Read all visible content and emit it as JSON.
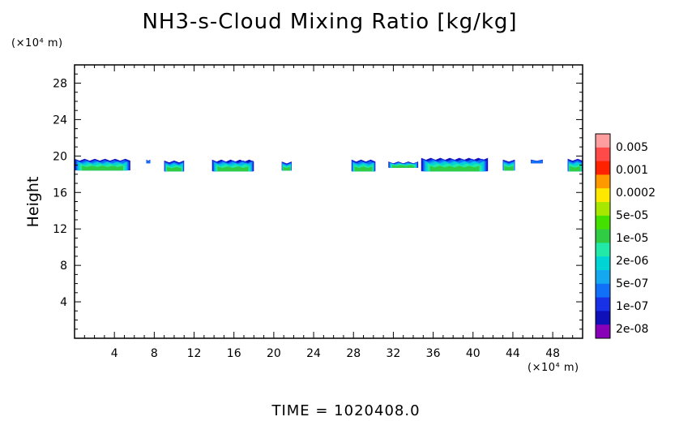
{
  "chart_data": {
    "type": "heatmap",
    "title": "NH3-s-Cloud Mixing Ratio [kg/kg]",
    "ylabel": "Height",
    "x_unit": "(×10⁴ m)",
    "y_unit": "(×10⁴ m)",
    "xlim": [
      0,
      51
    ],
    "ylim": [
      0,
      30
    ],
    "x_ticks": [
      4,
      8,
      12,
      16,
      20,
      24,
      28,
      32,
      36,
      40,
      44,
      48
    ],
    "y_ticks": [
      4,
      8,
      12,
      16,
      20,
      24,
      28
    ],
    "colorbar": {
      "labels": [
        "0.005",
        "0.001",
        "0.0002",
        "5e-05",
        "1e-05",
        "2e-06",
        "5e-07",
        "1e-07",
        "2e-08"
      ],
      "colors": [
        "#ff9e9e",
        "#ff4a4a",
        "#ff2200",
        "#ff9900",
        "#ffe800",
        "#a8e800",
        "#44e000",
        "#2fcc44",
        "#22e8a8",
        "#00d4d4",
        "#13a8f0",
        "#1070f8",
        "#1830e6",
        "#1010b8",
        "#8800b8"
      ]
    },
    "cloud_regions": [
      {
        "x": [
          0,
          5.6
        ],
        "y_base": 18.4,
        "y_top": 19.7
      },
      {
        "x": [
          7.2,
          7.6
        ],
        "y_base": 19.2,
        "y_top": 19.6
      },
      {
        "x": [
          9.0,
          11.0
        ],
        "y_base": 18.3,
        "y_top": 19.5
      },
      {
        "x": [
          13.8,
          18.0
        ],
        "y_base": 18.3,
        "y_top": 19.6
      },
      {
        "x": [
          20.8,
          21.8
        ],
        "y_base": 18.4,
        "y_top": 19.4
      },
      {
        "x": [
          27.8,
          30.2
        ],
        "y_base": 18.3,
        "y_top": 19.6
      },
      {
        "x": [
          31.5,
          34.5
        ],
        "y_base": 18.7,
        "y_top": 19.4
      },
      {
        "x": [
          34.8,
          41.5
        ],
        "y_base": 18.3,
        "y_top": 19.8
      },
      {
        "x": [
          43.0,
          44.2
        ],
        "y_base": 18.4,
        "y_top": 19.6
      },
      {
        "x": [
          45.8,
          47.0
        ],
        "y_base": 19.2,
        "y_top": 19.6
      },
      {
        "x": [
          49.5,
          51.0
        ],
        "y_base": 18.3,
        "y_top": 19.7
      }
    ],
    "time_label": "TIME =  1020408.0"
  }
}
